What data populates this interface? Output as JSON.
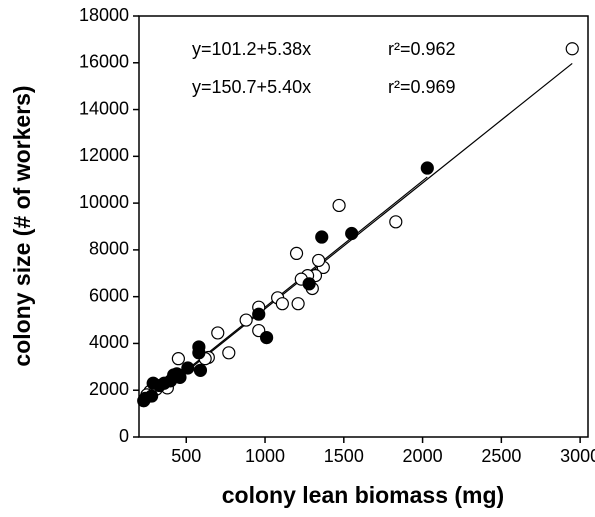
{
  "chart_data": {
    "type": "scatter",
    "x_label": "colony lean biomass (mg)",
    "y_label": "colony size (# of workers)",
    "xlim": [
      200,
      3050
    ],
    "ylim": [
      0,
      18000
    ],
    "xticks": [
      500,
      1000,
      1500,
      2000,
      2500,
      3000
    ],
    "yticks": [
      0,
      2000,
      4000,
      6000,
      8000,
      10000,
      12000,
      14000,
      16000,
      18000
    ],
    "series": [
      {
        "marker": "open",
        "color": "#000000",
        "x": [
          2950,
          1470,
          1830,
          1200,
          1370,
          1340,
          1320,
          1270,
          1300,
          1230,
          1210,
          1080,
          1110,
          960,
          880,
          960,
          700,
          770,
          640,
          620,
          450,
          380,
          310,
          270,
          250
        ],
        "values": [
          16600,
          9900,
          9200,
          7850,
          7250,
          7550,
          6900,
          6900,
          6350,
          6750,
          5700,
          5950,
          5700,
          5550,
          5000,
          4550,
          4450,
          3600,
          3400,
          3350,
          3350,
          2100,
          2050,
          1950,
          1800
        ]
      },
      {
        "marker": "filled",
        "color": "#000000",
        "x": [
          2030,
          1550,
          1360,
          1280,
          960,
          1010,
          580,
          580,
          590,
          510,
          460,
          440,
          420,
          400,
          360,
          330,
          290,
          280,
          240,
          230
        ],
        "values": [
          11500,
          8700,
          8550,
          6550,
          5250,
          4250,
          3850,
          3600,
          2850,
          2950,
          2550,
          2700,
          2650,
          2400,
          2300,
          2200,
          2300,
          1750,
          1650,
          1550
        ]
      }
    ],
    "fits": [
      {
        "equation": "y=101.2+5.38x",
        "r2": "r²=0.962",
        "intercept": 101.2,
        "slope": 5.38
      },
      {
        "equation": "y=150.7+5.40x",
        "r2": "r²=0.969",
        "intercept": 150.7,
        "slope": 5.4
      }
    ]
  }
}
